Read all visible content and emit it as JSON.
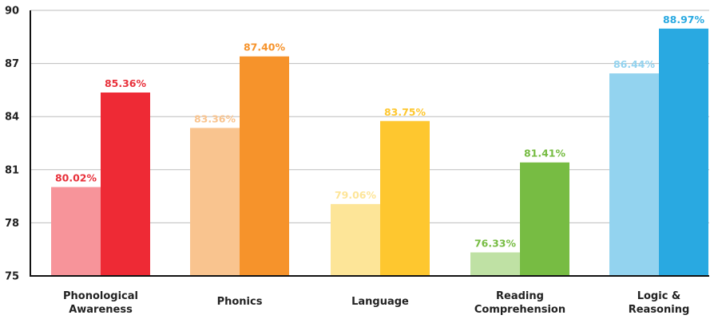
{
  "chart_data": {
    "type": "bar",
    "categories": [
      [
        "Phonological",
        "Awareness"
      ],
      [
        "Phonics"
      ],
      [
        "Language"
      ],
      [
        "Reading",
        "Comprehension"
      ],
      [
        "Logic &",
        "Reasoning"
      ]
    ],
    "series": [
      {
        "values": [
          80.02,
          83.36,
          79.06,
          76.33,
          86.44
        ],
        "labels": [
          "80.02%",
          "83.36%",
          "79.06%",
          "76.33%",
          "86.44%"
        ]
      },
      {
        "values": [
          85.36,
          87.4,
          83.75,
          81.41,
          88.97
        ],
        "labels": [
          "85.36%",
          "87.40%",
          "83.75%",
          "81.41%",
          "88.97%"
        ]
      }
    ],
    "colors": {
      "light": [
        "#f7949a",
        "#f9c48f",
        "#fde598",
        "#bfe1a4",
        "#93d3ef"
      ],
      "dark": [
        "#ee2a35",
        "#f6932b",
        "#fec72f",
        "#77bc43",
        "#29a9e1"
      ],
      "label_light": [
        "#e8303a",
        "#f9c48f",
        "#fde598",
        "#77bc43",
        "#93d3ef"
      ],
      "label_dark": [
        "#e8303a",
        "#f6932b",
        "#fec72f",
        "#77bc43",
        "#29a9e1"
      ]
    },
    "ylim": [
      75,
      90
    ],
    "yticks": [
      75,
      78,
      81,
      84,
      87,
      90
    ],
    "grid": true,
    "legend": false
  }
}
